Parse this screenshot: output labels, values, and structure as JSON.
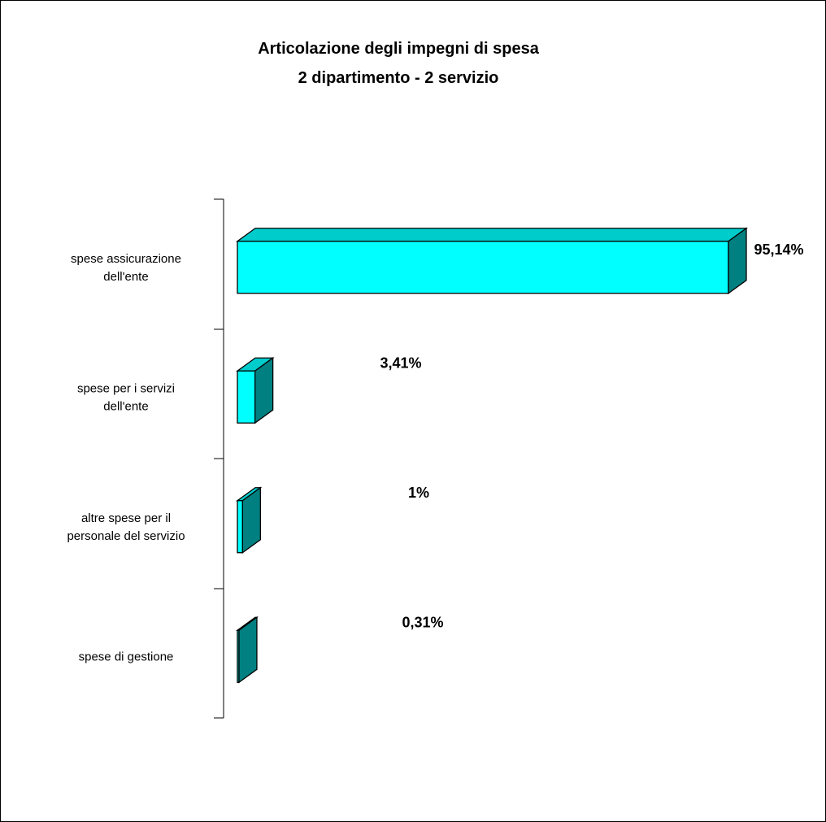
{
  "chart_data": {
    "type": "bar",
    "orientation": "horizontal",
    "style": "3d",
    "title": [
      "Articolazione degli impegni di spesa",
      "2 dipartimento - 2 servizio"
    ],
    "categories": [
      [
        "spese assicurazione",
        "dell'ente"
      ],
      [
        "spese per i servizi",
        "dell'ente"
      ],
      [
        "altre spese per il",
        "personale del servizio"
      ],
      [
        "spese di gestione"
      ]
    ],
    "values": [
      95.14,
      3.41,
      1,
      0.31
    ],
    "value_labels": [
      "95,14%",
      "3,41%",
      "1%",
      "0,31%"
    ],
    "xlim": [
      0,
      95.14
    ],
    "grid": false,
    "legend": "none",
    "colors": {
      "front": "#00ffff",
      "side": "#008080",
      "top": "#00cccc",
      "outline": "#000000"
    }
  }
}
